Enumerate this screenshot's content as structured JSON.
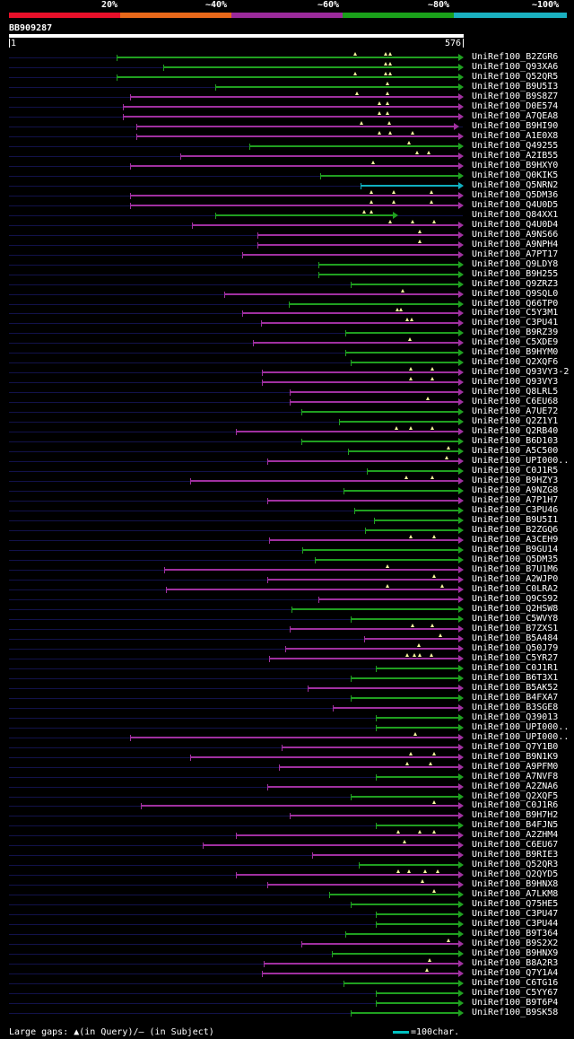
{
  "identity_legend": {
    "labels": [
      "20%",
      "~40%",
      "~60%",
      "~80%",
      "~100%"
    ],
    "colors": [
      "#e8102a",
      "#e8681a",
      "#9a2a9a",
      "#1aa01a",
      "#1ab0c0"
    ]
  },
  "query": {
    "id": "BB909287",
    "start": "1",
    "end": "576",
    "length": 576
  },
  "colors": {
    "green": "#20a020",
    "magenta": "#a030a0",
    "cyan": "#10b0c0",
    "gap": "#ffffa0",
    "track": "#12124a"
  },
  "hits": [
    {
      "label": "UniRef100_B2ZGR6",
      "start": 137,
      "end": 576,
      "color": "green",
      "gaps": [
        440,
        478,
        484
      ]
    },
    {
      "label": "UniRef100_Q93XA6",
      "start": 197,
      "end": 576,
      "color": "green",
      "gaps": [
        478,
        484
      ]
    },
    {
      "label": "UniRef100_Q52QR5",
      "start": 137,
      "end": 576,
      "color": "green",
      "gaps": [
        440,
        478,
        484
      ]
    },
    {
      "label": "UniRef100_B9U5I3",
      "start": 262,
      "end": 576,
      "color": "green",
      "gaps": [
        480
      ]
    },
    {
      "label": "UniRef100_B9S8Z7",
      "start": 154,
      "end": 576,
      "color": "magenta",
      "gaps": [
        442,
        480
      ]
    },
    {
      "label": "UniRef100_D0E574",
      "start": 145,
      "end": 576,
      "color": "magenta",
      "gaps": [
        470,
        480
      ]
    },
    {
      "label": "UniRef100_A7QEA8",
      "start": 145,
      "end": 576,
      "color": "magenta",
      "gaps": [
        470,
        480
      ]
    },
    {
      "label": "UniRef100_B9HI90",
      "start": 162,
      "end": 570,
      "color": "magenta",
      "gaps": [
        448,
        483
      ]
    },
    {
      "label": "UniRef100_A1E0X8",
      "start": 162,
      "end": 576,
      "color": "magenta",
      "gaps": [
        470,
        484,
        512
      ]
    },
    {
      "label": "UniRef100_Q49255",
      "start": 305,
      "end": 576,
      "color": "green",
      "gaps": [
        508
      ]
    },
    {
      "label": "UniRef100_A2IB55",
      "start": 218,
      "end": 576,
      "color": "magenta",
      "gaps": [
        518,
        533
      ]
    },
    {
      "label": "UniRef100_B9HXY0",
      "start": 154,
      "end": 576,
      "color": "magenta",
      "gaps": [
        462
      ]
    },
    {
      "label": "UniRef100_Q0KIK5",
      "start": 395,
      "end": 576,
      "color": "green",
      "gaps": []
    },
    {
      "label": "UniRef100_Q5NRN2",
      "start": 447,
      "end": 576,
      "color": "cyan",
      "gaps": []
    },
    {
      "label": "UniRef100_Q5DM36",
      "start": 154,
      "end": 576,
      "color": "magenta",
      "gaps": [
        460,
        488,
        536
      ]
    },
    {
      "label": "UniRef100_Q4U0D5",
      "start": 154,
      "end": 576,
      "color": "magenta",
      "gaps": [
        460,
        488,
        536
      ]
    },
    {
      "label": "UniRef100_Q84XX1",
      "start": 262,
      "end": 493,
      "color": "green",
      "gaps": [
        451,
        460
      ]
    },
    {
      "label": "UniRef100_Q4U0D4",
      "start": 233,
      "end": 576,
      "color": "magenta",
      "gaps": [
        484,
        512,
        540
      ]
    },
    {
      "label": "UniRef100_A9NS66",
      "start": 316,
      "end": 576,
      "color": "magenta",
      "gaps": [
        522
      ]
    },
    {
      "label": "UniRef100_A9NPH4",
      "start": 316,
      "end": 576,
      "color": "magenta",
      "gaps": [
        522
      ]
    },
    {
      "label": "UniRef100_A7PT17",
      "start": 296,
      "end": 576,
      "color": "magenta",
      "gaps": []
    },
    {
      "label": "UniRef100_Q9LDY8",
      "start": 393,
      "end": 576,
      "color": "green",
      "gaps": []
    },
    {
      "label": "UniRef100_B9H255",
      "start": 393,
      "end": 576,
      "color": "green",
      "gaps": []
    },
    {
      "label": "UniRef100_Q9ZRZ3",
      "start": 434,
      "end": 576,
      "color": "green",
      "gaps": []
    },
    {
      "label": "UniRef100_Q9SQL0",
      "start": 274,
      "end": 576,
      "color": "magenta",
      "gaps": [
        500
      ]
    },
    {
      "label": "UniRef100_Q66TP0",
      "start": 356,
      "end": 576,
      "color": "green",
      "gaps": []
    },
    {
      "label": "UniRef100_C5Y3M1",
      "start": 296,
      "end": 576,
      "color": "magenta",
      "gaps": [
        493,
        498
      ]
    },
    {
      "label": "UniRef100_C3PU41",
      "start": 320,
      "end": 576,
      "color": "magenta",
      "gaps": [
        506,
        511
      ]
    },
    {
      "label": "UniRef100_B9RZ39",
      "start": 427,
      "end": 576,
      "color": "green",
      "gaps": []
    },
    {
      "label": "UniRef100_C5XDE9",
      "start": 310,
      "end": 576,
      "color": "magenta",
      "gaps": [
        509
      ]
    },
    {
      "label": "UniRef100_B9HYM0",
      "start": 427,
      "end": 576,
      "color": "green",
      "gaps": []
    },
    {
      "label": "UniRef100_Q2XQF6",
      "start": 434,
      "end": 576,
      "color": "green",
      "gaps": []
    },
    {
      "label": "UniRef100_Q93VY3-2",
      "start": 322,
      "end": 576,
      "color": "magenta",
      "gaps": [
        510,
        537
      ]
    },
    {
      "label": "UniRef100_Q93VY3",
      "start": 322,
      "end": 576,
      "color": "magenta",
      "gaps": [
        510,
        537
      ]
    },
    {
      "label": "UniRef100_Q8LRL5",
      "start": 357,
      "end": 576,
      "color": "magenta",
      "gaps": []
    },
    {
      "label": "UniRef100_C6EU68",
      "start": 357,
      "end": 576,
      "color": "magenta",
      "gaps": [
        532
      ]
    },
    {
      "label": "UniRef100_A7UE72",
      "start": 371,
      "end": 576,
      "color": "green",
      "gaps": []
    },
    {
      "label": "UniRef100_Q2Z1Y1",
      "start": 419,
      "end": 576,
      "color": "green",
      "gaps": []
    },
    {
      "label": "UniRef100_Q2RB40",
      "start": 289,
      "end": 576,
      "color": "magenta",
      "gaps": [
        492,
        510,
        537
      ]
    },
    {
      "label": "UniRef100_B6D103",
      "start": 371,
      "end": 576,
      "color": "green",
      "gaps": []
    },
    {
      "label": "UniRef100_A5C500",
      "start": 431,
      "end": 576,
      "color": "green",
      "gaps": [
        558
      ]
    },
    {
      "label": "UniRef100_UPI000..",
      "start": 328,
      "end": 576,
      "color": "magenta",
      "gaps": [
        556
      ]
    },
    {
      "label": "UniRef100_C0J1R5",
      "start": 454,
      "end": 576,
      "color": "green",
      "gaps": []
    },
    {
      "label": "UniRef100_B9HZY3",
      "start": 231,
      "end": 576,
      "color": "magenta",
      "gaps": [
        504,
        537
      ]
    },
    {
      "label": "UniRef100_A9NZG8",
      "start": 425,
      "end": 576,
      "color": "green",
      "gaps": []
    },
    {
      "label": "UniRef100_A7P1H7",
      "start": 328,
      "end": 576,
      "color": "magenta",
      "gaps": []
    },
    {
      "label": "UniRef100_C3PU46",
      "start": 439,
      "end": 576,
      "color": "green",
      "gaps": []
    },
    {
      "label": "UniRef100_B9U5I1",
      "start": 464,
      "end": 576,
      "color": "green",
      "gaps": []
    },
    {
      "label": "UniRef100_B2ZGQ6",
      "start": 452,
      "end": 576,
      "color": "green",
      "gaps": []
    },
    {
      "label": "UniRef100_A3CEH9",
      "start": 331,
      "end": 576,
      "color": "magenta",
      "gaps": [
        510,
        540
      ]
    },
    {
      "label": "UniRef100_B9GU14",
      "start": 373,
      "end": 576,
      "color": "green",
      "gaps": []
    },
    {
      "label": "UniRef100_Q5DM35",
      "start": 389,
      "end": 576,
      "color": "green",
      "gaps": []
    },
    {
      "label": "UniRef100_B7U1M6",
      "start": 198,
      "end": 576,
      "color": "magenta",
      "gaps": [
        480
      ]
    },
    {
      "label": "UniRef100_A2WJP0",
      "start": 328,
      "end": 576,
      "color": "magenta",
      "gaps": [
        540
      ]
    },
    {
      "label": "UniRef100_C0LRA2",
      "start": 200,
      "end": 576,
      "color": "magenta",
      "gaps": [
        480,
        550
      ]
    },
    {
      "label": "UniRef100_Q9CS92",
      "start": 393,
      "end": 576,
      "color": "magenta",
      "gaps": []
    },
    {
      "label": "UniRef100_Q2HSW8",
      "start": 359,
      "end": 576,
      "color": "green",
      "gaps": []
    },
    {
      "label": "UniRef100_C5WVY8",
      "start": 434,
      "end": 576,
      "color": "green",
      "gaps": []
    },
    {
      "label": "UniRef100_B7ZXS1",
      "start": 357,
      "end": 576,
      "color": "magenta",
      "gaps": [
        512,
        537
      ]
    },
    {
      "label": "UniRef100_B5A484",
      "start": 451,
      "end": 576,
      "color": "magenta",
      "gaps": [
        548
      ]
    },
    {
      "label": "UniRef100_Q50J79",
      "start": 351,
      "end": 576,
      "color": "magenta",
      "gaps": [
        520
      ]
    },
    {
      "label": "UniRef100_C5YR27",
      "start": 331,
      "end": 576,
      "color": "magenta",
      "gaps": [
        505,
        515,
        522,
        536
      ]
    },
    {
      "label": "UniRef100_C0J1R1",
      "start": 466,
      "end": 576,
      "color": "green",
      "gaps": []
    },
    {
      "label": "UniRef100_B6T3X1",
      "start": 434,
      "end": 576,
      "color": "green",
      "gaps": []
    },
    {
      "label": "UniRef100_B5AK52",
      "start": 379,
      "end": 576,
      "color": "magenta",
      "gaps": []
    },
    {
      "label": "UniRef100_B4FXA7",
      "start": 434,
      "end": 576,
      "color": "green",
      "gaps": []
    },
    {
      "label": "UniRef100_B3SGE8",
      "start": 411,
      "end": 576,
      "color": "magenta",
      "gaps": []
    },
    {
      "label": "UniRef100_Q39013",
      "start": 466,
      "end": 576,
      "color": "green",
      "gaps": []
    },
    {
      "label": "UniRef100_UPI000..",
      "start": 466,
      "end": 576,
      "color": "green",
      "gaps": []
    },
    {
      "label": "UniRef100_UPI000..",
      "start": 154,
      "end": 576,
      "color": "magenta",
      "gaps": [
        516
      ]
    },
    {
      "label": "UniRef100_Q7Y1B0",
      "start": 347,
      "end": 576,
      "color": "magenta",
      "gaps": []
    },
    {
      "label": "UniRef100_B9N1K9",
      "start": 231,
      "end": 576,
      "color": "magenta",
      "gaps": [
        510,
        540
      ]
    },
    {
      "label": "UniRef100_A9PFM0",
      "start": 343,
      "end": 576,
      "color": "magenta",
      "gaps": [
        505,
        535
      ]
    },
    {
      "label": "UniRef100_A7NVF8",
      "start": 466,
      "end": 576,
      "color": "green",
      "gaps": []
    },
    {
      "label": "UniRef100_A2ZNA6",
      "start": 328,
      "end": 576,
      "color": "magenta",
      "gaps": []
    },
    {
      "label": "UniRef100_Q2XQF5",
      "start": 434,
      "end": 576,
      "color": "green",
      "gaps": []
    },
    {
      "label": "UniRef100_C0J1R6",
      "start": 168,
      "end": 576,
      "color": "magenta",
      "gaps": [
        540
      ]
    },
    {
      "label": "UniRef100_B9H7H2",
      "start": 357,
      "end": 576,
      "color": "magenta",
      "gaps": []
    },
    {
      "label": "UniRef100_B4FJN5",
      "start": 466,
      "end": 576,
      "color": "green",
      "gaps": []
    },
    {
      "label": "UniRef100_A2ZHM4",
      "start": 289,
      "end": 576,
      "color": "magenta",
      "gaps": [
        494,
        522,
        540
      ]
    },
    {
      "label": "UniRef100_C6EU67",
      "start": 247,
      "end": 576,
      "color": "magenta",
      "gaps": [
        502
      ]
    },
    {
      "label": "UniRef100_B9RIE3",
      "start": 385,
      "end": 576,
      "color": "magenta",
      "gaps": []
    },
    {
      "label": "UniRef100_Q52QR3",
      "start": 444,
      "end": 576,
      "color": "green",
      "gaps": []
    },
    {
      "label": "UniRef100_Q2QYD5",
      "start": 289,
      "end": 576,
      "color": "magenta",
      "gaps": [
        494,
        508,
        528,
        544
      ]
    },
    {
      "label": "UniRef100_B9HNX8",
      "start": 328,
      "end": 576,
      "color": "magenta",
      "gaps": [
        525
      ]
    },
    {
      "label": "UniRef100_A7LKM8",
      "start": 407,
      "end": 576,
      "color": "green",
      "gaps": [
        540
      ]
    },
    {
      "label": "UniRef100_Q75HE5",
      "start": 434,
      "end": 576,
      "color": "green",
      "gaps": []
    },
    {
      "label": "UniRef100_C3PU47",
      "start": 466,
      "end": 576,
      "color": "green",
      "gaps": []
    },
    {
      "label": "UniRef100_C3PU44",
      "start": 466,
      "end": 576,
      "color": "green",
      "gaps": []
    },
    {
      "label": "UniRef100_B9T364",
      "start": 427,
      "end": 576,
      "color": "green",
      "gaps": []
    },
    {
      "label": "UniRef100_B9S2X2",
      "start": 371,
      "end": 576,
      "color": "magenta",
      "gaps": [
        558
      ]
    },
    {
      "label": "UniRef100_B9HNX9",
      "start": 410,
      "end": 576,
      "color": "green",
      "gaps": []
    },
    {
      "label": "UniRef100_B8A2R3",
      "start": 324,
      "end": 576,
      "color": "magenta",
      "gaps": [
        534
      ]
    },
    {
      "label": "UniRef100_Q7Y1A4",
      "start": 322,
      "end": 576,
      "color": "magenta",
      "gaps": [
        531
      ]
    },
    {
      "label": "UniRef100_C6TG16",
      "start": 425,
      "end": 576,
      "color": "green",
      "gaps": []
    },
    {
      "label": "UniRef100_C5YY67",
      "start": 466,
      "end": 576,
      "color": "green",
      "gaps": []
    },
    {
      "label": "UniRef100_B9T6P4",
      "start": 466,
      "end": 576,
      "color": "green",
      "gaps": []
    },
    {
      "label": "UniRef100_B9SK58",
      "start": 434,
      "end": 576,
      "color": "green",
      "gaps": []
    }
  ],
  "footer": {
    "text": "Large gaps: ▲(in Query)/– (in Subject)",
    "scale_label": "=100char."
  }
}
